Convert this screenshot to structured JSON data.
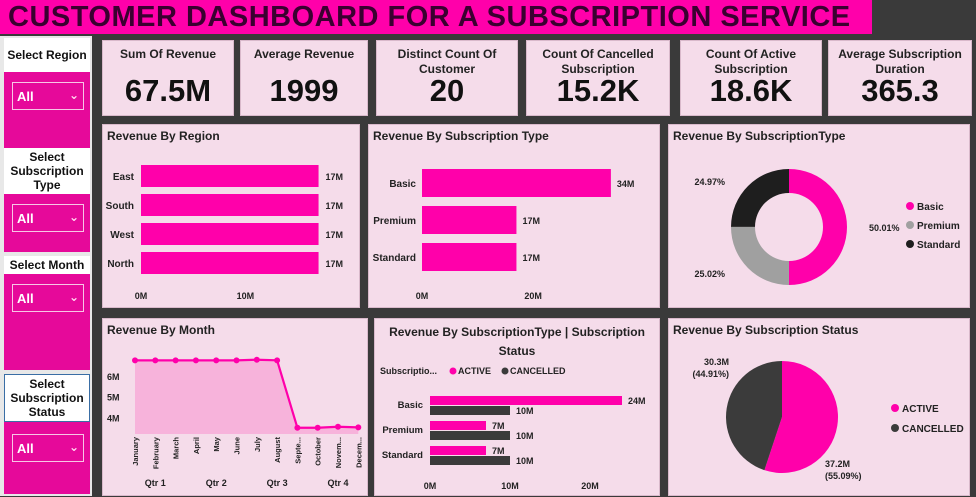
{
  "header": {
    "title": "CUSTOMER DASHBOARD FOR A SUBSCRIPTION SERVICE"
  },
  "slicers": [
    {
      "label": "Select Region",
      "value": "All"
    },
    {
      "label": "Select Subscription Type",
      "value": "All"
    },
    {
      "label": "Select Month",
      "value": "All"
    },
    {
      "label": "Select Subscription Status",
      "value": "All"
    }
  ],
  "kpis": [
    {
      "title": "Sum Of Revenue",
      "value": "67.5M"
    },
    {
      "title": "Average Revenue",
      "value": "1999"
    },
    {
      "title": "Distinct Count Of Customer",
      "value": "20"
    },
    {
      "title": "Count Of Cancelled Subscription",
      "value": "15.2K"
    },
    {
      "title": "Count Of Active Subscription",
      "value": "18.6K"
    },
    {
      "title": "Average Subscription Duration",
      "value": "365.3"
    }
  ],
  "colors": {
    "accent": "#ff00aa",
    "grey": "#a0a0a0",
    "dark": "#1e1e1e",
    "dark2": "#3b3b3b",
    "panel": "#f5dcea"
  },
  "chart_data": [
    {
      "type": "bar",
      "orientation": "horizontal",
      "title": "Revenue By Region",
      "categories": [
        "East",
        "South",
        "West",
        "North"
      ],
      "values": [
        17,
        17,
        17,
        17
      ],
      "value_labels": [
        "17M",
        "17M",
        "17M",
        "17M"
      ],
      "x_ticks": [
        "0M",
        "10M"
      ],
      "xlim": [
        0,
        18
      ]
    },
    {
      "type": "bar",
      "orientation": "horizontal",
      "title": "Revenue By Subscription Type",
      "categories": [
        "Basic",
        "Premium",
        "Standard"
      ],
      "values": [
        34,
        17,
        17
      ],
      "value_labels": [
        "34M",
        "17M",
        "17M"
      ],
      "x_ticks": [
        "0M",
        "20M"
      ],
      "xlim": [
        0,
        36
      ]
    },
    {
      "type": "pie",
      "donut": true,
      "title": "Revenue By SubscriptionType",
      "categories": [
        "Basic",
        "Premium",
        "Standard"
      ],
      "values": [
        50.01,
        25.02,
        24.97
      ],
      "value_labels": [
        "50.01%",
        "25.02%",
        "24.97%"
      ],
      "legend": "right"
    },
    {
      "type": "area",
      "title": "Revenue By Month",
      "categories": [
        "January",
        "February",
        "March",
        "April",
        "May",
        "June",
        "July",
        "August",
        "Septe...",
        "October",
        "Novem...",
        "Decem..."
      ],
      "quarters": [
        "Qtr 1",
        "Qtr 2",
        "Qtr 3",
        "Qtr 4"
      ],
      "values": [
        6.75,
        6.75,
        6.75,
        6.75,
        6.75,
        6.75,
        6.78,
        6.75,
        3.5,
        3.5,
        3.55,
        3.52
      ],
      "y_ticks": [
        "6M",
        "5M",
        "4M"
      ],
      "ylim": [
        3.2,
        7.2
      ]
    },
    {
      "type": "bar",
      "orientation": "horizontal",
      "grouped": true,
      "title": "Revenue By SubscriptionType | Subscription Status",
      "legend_title": "Subscriptio...",
      "categories": [
        "Basic",
        "Premium",
        "Standard"
      ],
      "series": [
        {
          "name": "ACTIVE",
          "values": [
            24,
            7,
            7
          ],
          "labels": [
            "24M",
            "7M",
            "7M"
          ]
        },
        {
          "name": "CANCELLED",
          "values": [
            10,
            10,
            10
          ],
          "labels": [
            "10M",
            "10M",
            "10M"
          ]
        }
      ],
      "x_ticks": [
        "0M",
        "10M",
        "20M"
      ],
      "xlim": [
        0,
        30
      ]
    },
    {
      "type": "pie",
      "title": "Revenue By Subscription Status",
      "categories": [
        "ACTIVE",
        "CANCELLED"
      ],
      "values": [
        55.09,
        44.91
      ],
      "value_labels": [
        "37.2M\n(55.09%)",
        "30.3M\n(44.91%)"
      ],
      "legend": "right"
    }
  ]
}
